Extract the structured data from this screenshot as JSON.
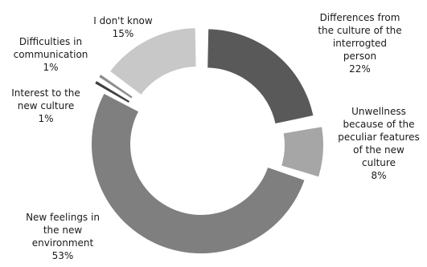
{
  "chart_data": {
    "type": "pie",
    "style": "exploded doughnut",
    "title": "",
    "series": [
      {
        "categories": [
          "Differences from the culture of the interrogted person",
          "Unwellness because of the peculiar features of the new culture",
          "New feelings in the new environment",
          "Interest to the new culture",
          "Difficulties in communication",
          "I don't know"
        ],
        "values": [
          22,
          8,
          53,
          1,
          1,
          15
        ],
        "value_labels": [
          "22%",
          "8%",
          "53%",
          "1%",
          "1%",
          "15%"
        ],
        "colors": [
          "#595959",
          "#a6a6a6",
          "#7f7f7f",
          "#404040",
          "#8c8c8c",
          "#c8c8c8"
        ]
      }
    ],
    "legend": "none (data labels beside slices)"
  },
  "labels": [
    {
      "name_lines": [
        "Differences from",
        "the culture of the",
        "interrogted",
        "person"
      ],
      "pct": "22%"
    },
    {
      "name_lines": [
        "Unwellness",
        "because of the",
        "peculiar features",
        "of the new",
        "culture"
      ],
      "pct": "8%"
    },
    {
      "name_lines": [
        "New feelings in",
        "the new",
        "environment"
      ],
      "pct": "53%"
    },
    {
      "name_lines": [
        "Interest to the",
        "new culture"
      ],
      "pct": "1%"
    },
    {
      "name_lines": [
        "Difficulties in",
        "communication"
      ],
      "pct": "1%"
    },
    {
      "name_lines": [
        "I don't know"
      ],
      "pct": "15%"
    }
  ]
}
